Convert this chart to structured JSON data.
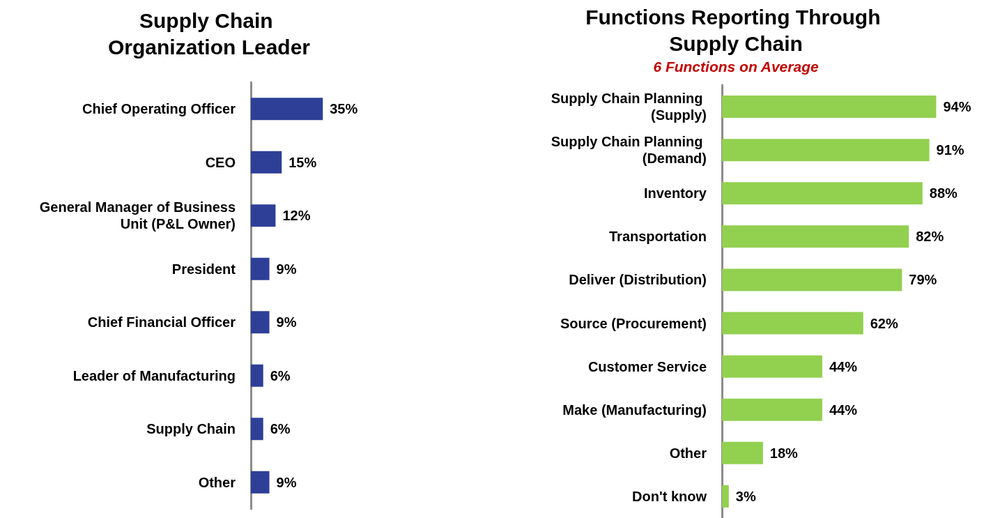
{
  "chart_data": [
    {
      "type": "bar",
      "title": "Supply Chain Organization Leader",
      "orientation": "horizontal",
      "categories": [
        "Chief Operating Officer",
        "CEO",
        "General Manager of Business Unit (P&L Owner)",
        "President",
        "Chief Financial Officer",
        "Leader of Manufacturing",
        "Supply Chain",
        "Other"
      ],
      "values": [
        35,
        15,
        12,
        9,
        9,
        6,
        6,
        9
      ],
      "value_labels": [
        "35%",
        "15%",
        "12%",
        "9%",
        "9%",
        "6%",
        "6%",
        "9%"
      ],
      "color": "#2e3f97",
      "tick_labels": "y",
      "grid": false
    },
    {
      "type": "bar",
      "title": "Functions Reporting Through Supply Chain",
      "subtitle": "6 Functions on Average",
      "orientation": "horizontal",
      "categories": [
        "Supply Chain Planning (Supply)",
        "Supply Chain Planning (Demand)",
        "Inventory",
        "Transportation",
        "Deliver (Distribution)",
        "Source (Procurement)",
        "Customer Service",
        "Make (Manufacturing)",
        "Other",
        "Don't know"
      ],
      "values": [
        94,
        91,
        88,
        82,
        79,
        62,
        44,
        44,
        18,
        3
      ],
      "value_labels": [
        "94%",
        "91%",
        "88%",
        "82%",
        "79%",
        "62%",
        "44%",
        "44%",
        "18%",
        "3%"
      ],
      "color": "#92d050",
      "tick_labels": "y",
      "grid": false
    }
  ]
}
